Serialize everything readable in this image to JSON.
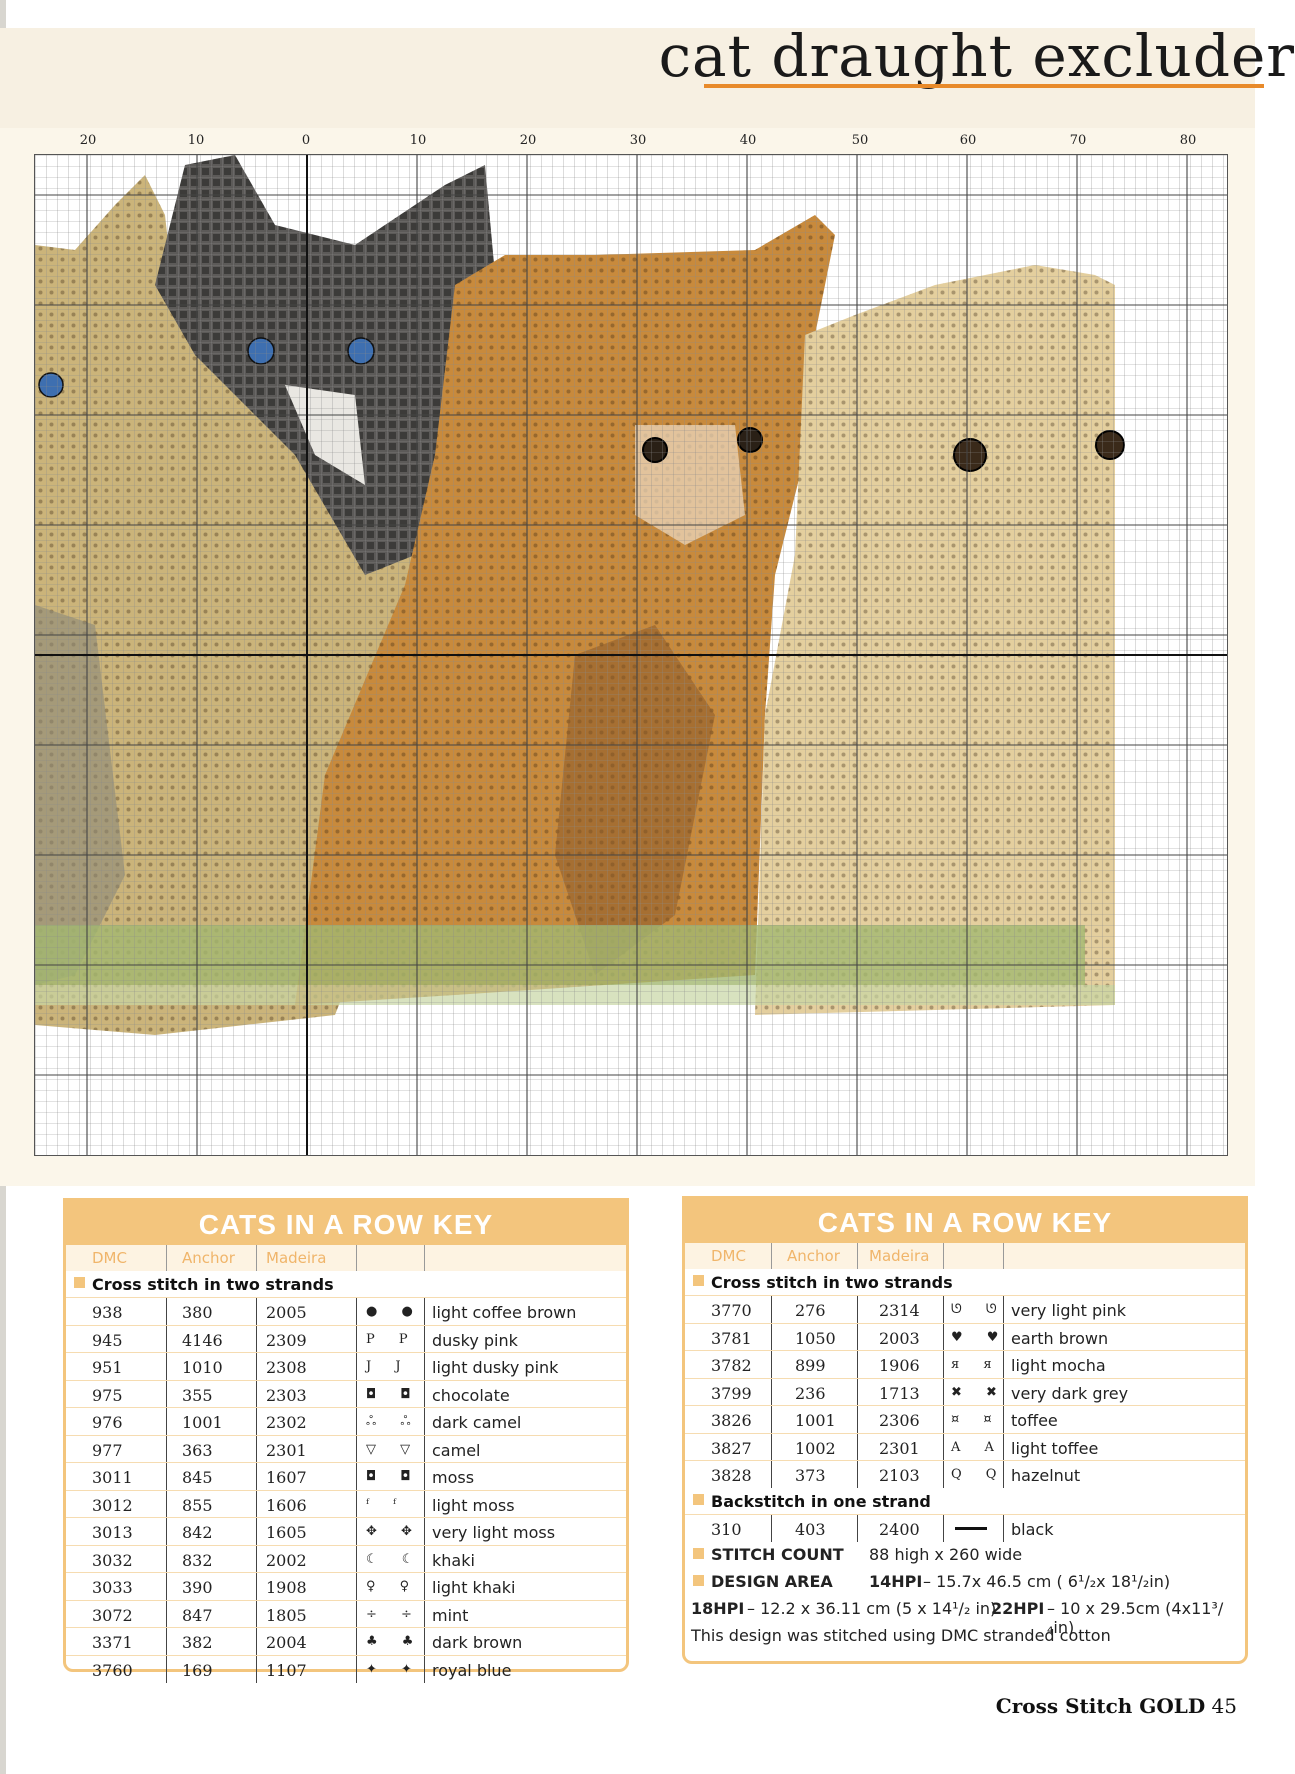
{
  "title": "cat draught excluder",
  "chart": {
    "axis_numbers": [
      "20",
      "10",
      "0",
      "10",
      "20",
      "30",
      "40",
      "50",
      "60",
      "70",
      "80"
    ]
  },
  "left_key": {
    "title": "CATS IN A ROW KEY",
    "columns": [
      "DMC",
      "Anchor",
      "Madeira"
    ],
    "section": "Cross stitch in two strands",
    "rows": [
      {
        "dmc": "938",
        "anchor": "380",
        "madeira": "2005",
        "symbol": "● ●",
        "name": "light coffee brown"
      },
      {
        "dmc": "945",
        "anchor": "4146",
        "madeira": "2309",
        "symbol": "P P",
        "name": "dusky pink"
      },
      {
        "dmc": "951",
        "anchor": "1010",
        "madeira": "2308",
        "symbol": "J J",
        "name": "light dusky pink"
      },
      {
        "dmc": "975",
        "anchor": "355",
        "madeira": "2303",
        "symbol": "◘ ◘",
        "name": "chocolate"
      },
      {
        "dmc": "976",
        "anchor": "1001",
        "madeira": "2302",
        "symbol": "ஃ ஃ",
        "name": "dark camel"
      },
      {
        "dmc": "977",
        "anchor": "363",
        "madeira": "2301",
        "symbol": "▽ ▽",
        "name": "camel"
      },
      {
        "dmc": "3011",
        "anchor": "845",
        "madeira": "1607",
        "symbol": "◘ ◘",
        "name": "moss"
      },
      {
        "dmc": "3012",
        "anchor": "855",
        "madeira": "1606",
        "symbol": "ᶠ ᶠ",
        "name": "light moss"
      },
      {
        "dmc": "3013",
        "anchor": "842",
        "madeira": "1605",
        "symbol": "✥ ✥",
        "name": "very light moss"
      },
      {
        "dmc": "3032",
        "anchor": "832",
        "madeira": "2002",
        "symbol": "☾ ☾",
        "name": "khaki"
      },
      {
        "dmc": "3033",
        "anchor": "390",
        "madeira": "1908",
        "symbol": "♀ ♀",
        "name": "light khaki"
      },
      {
        "dmc": "3072",
        "anchor": "847",
        "madeira": "1805",
        "symbol": "÷ ÷",
        "name": "mint"
      },
      {
        "dmc": "3371",
        "anchor": "382",
        "madeira": "2004",
        "symbol": "♣ ♣",
        "name": "dark brown"
      },
      {
        "dmc": "3760",
        "anchor": "169",
        "madeira": "1107",
        "symbol": "✦ ✦",
        "name": "royal blue"
      }
    ]
  },
  "right_key": {
    "title": "CATS IN A ROW KEY",
    "columns": [
      "DMC",
      "Anchor",
      "Madeira"
    ],
    "section": "Cross stitch in two strands",
    "rows": [
      {
        "dmc": "3770",
        "anchor": "276",
        "madeira": "2314",
        "symbol": "ᘎ ᘎ",
        "name": "very light pink"
      },
      {
        "dmc": "3781",
        "anchor": "1050",
        "madeira": "2003",
        "symbol": "♥ ♥",
        "name": "earth brown"
      },
      {
        "dmc": "3782",
        "anchor": "899",
        "madeira": "1906",
        "symbol": "я я",
        "name": "light mocha"
      },
      {
        "dmc": "3799",
        "anchor": "236",
        "madeira": "1713",
        "symbol": "✖ ✖",
        "name": "very dark grey"
      },
      {
        "dmc": "3826",
        "anchor": "1001",
        "madeira": "2306",
        "symbol": "¤ ¤",
        "name": "toffee"
      },
      {
        "dmc": "3827",
        "anchor": "1002",
        "madeira": "2301",
        "symbol": "A A",
        "name": "light toffee"
      },
      {
        "dmc": "3828",
        "anchor": "373",
        "madeira": "2103",
        "symbol": "Q Q",
        "name": "hazelnut"
      }
    ],
    "backstitch_section": "Backstitch in one strand",
    "backstitch": {
      "dmc": "310",
      "anchor": "403",
      "madeira": "2400",
      "name": "black"
    },
    "stitch_count_label": "STITCH COUNT",
    "stitch_count_value": "88  high x 260 wide",
    "design_area_label": "DESIGN AREA",
    "hpi14_label": "14HPI",
    "hpi14_value": "– 15.7x 46.5 cm ( 6¹/₂x 18¹/₂in)",
    "hpi18_label": "18HPI",
    "hpi18_value": "– 12.2 x 36.11 cm (5 x 14¹/₂ in)",
    "hpi22_label": "22HPI",
    "hpi22_value": "– 10 x 29.5cm (4x11³/₄in)",
    "note": "This design was stitched using DMC stranded cotton"
  },
  "footer": {
    "brand": "Cross Stitch GOLD",
    "page": "45"
  }
}
